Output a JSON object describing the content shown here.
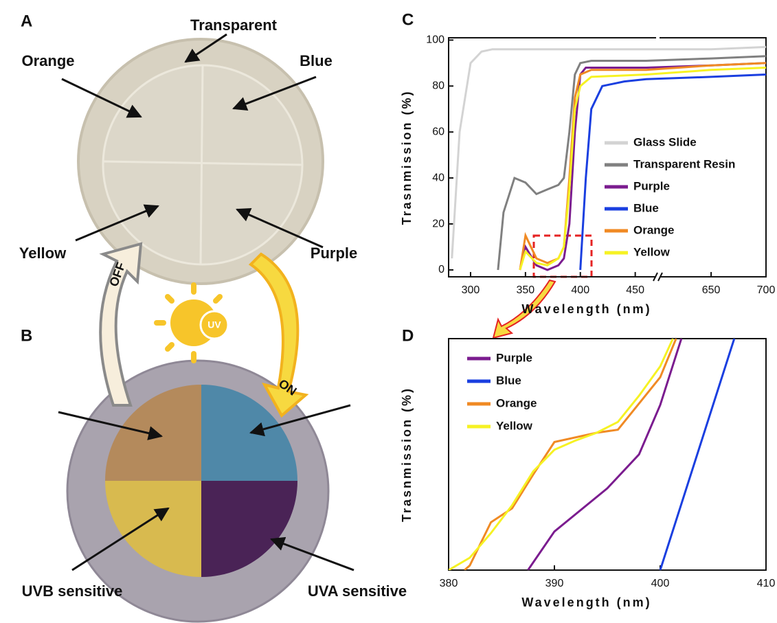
{
  "panels": {
    "a": "A",
    "b": "B"
  },
  "photo_labels": {
    "transparent": "Transparent",
    "orange": "Orange",
    "blue": "Blue",
    "yellow": "Yellow",
    "purple": "Purple",
    "uvb": "UVB sensitive",
    "uva": "UVA sensitive",
    "off": "OFF",
    "on": "ON",
    "uv": "UV"
  },
  "chart_data": [
    {
      "type": "line",
      "panel": "C",
      "xlabel": "Wavelength (nm)",
      "ylabel": "Trasnmission (%)",
      "xlim": [
        280,
        700
      ],
      "xbreak": [
        469,
        603
      ],
      "xticks": [
        300,
        350,
        400,
        450,
        650,
        700
      ],
      "ylim": [
        -3,
        101
      ],
      "yticks": [
        0,
        20,
        40,
        60,
        80,
        100
      ],
      "legend": "center-right",
      "series": [
        {
          "name": "Glass Slide",
          "color": "#d3d3d3",
          "x": [
            283,
            290,
            300,
            310,
            320,
            340,
            360,
            380,
            400,
            420,
            460,
            650,
            700
          ],
          "values": [
            5,
            60,
            90,
            95,
            96,
            96,
            96,
            96,
            96,
            96,
            96,
            96,
            97
          ]
        },
        {
          "name": "Transparent Resin",
          "color": "#808080",
          "x": [
            325,
            330,
            340,
            350,
            360,
            370,
            380,
            385,
            390,
            395,
            400,
            410,
            460,
            650,
            700
          ],
          "values": [
            0,
            25,
            40,
            38,
            33,
            35,
            37,
            40,
            60,
            85,
            90,
            91,
            91,
            92,
            93
          ]
        },
        {
          "name": "Purple",
          "color": "#7b1c8f",
          "x": [
            345,
            350,
            360,
            370,
            380,
            385,
            390,
            395,
            400,
            405,
            410,
            460,
            650,
            700
          ],
          "values": [
            0,
            10,
            2,
            0,
            2,
            5,
            20,
            60,
            85,
            88,
            88,
            88,
            89,
            90
          ]
        },
        {
          "name": "Blue",
          "color": "#1a3fe0",
          "x": [
            400,
            405,
            410,
            420,
            440,
            460,
            650,
            700
          ],
          "values": [
            0,
            40,
            70,
            80,
            82,
            83,
            84,
            85
          ]
        },
        {
          "name": "Orange",
          "color": "#f08a24",
          "x": [
            345,
            350,
            360,
            370,
            380,
            385,
            390,
            395,
            400,
            410,
            460,
            650,
            700
          ],
          "values": [
            0,
            15,
            5,
            3,
            5,
            10,
            40,
            75,
            85,
            87,
            87,
            89,
            90
          ]
        },
        {
          "name": "Yellow",
          "color": "#f6f223",
          "x": [
            345,
            350,
            360,
            370,
            380,
            385,
            390,
            395,
            400,
            410,
            460,
            650,
            700
          ],
          "values": [
            0,
            8,
            3,
            2,
            5,
            10,
            35,
            70,
            80,
            84,
            85,
            87,
            88
          ]
        }
      ]
    },
    {
      "type": "line",
      "panel": "D",
      "xlabel": "Wavelength (nm)",
      "ylabel": "Trasnmission (%)",
      "xlim": [
        380,
        410
      ],
      "xticks": [
        380,
        390,
        400,
        410
      ],
      "ylim": [
        0,
        15
      ],
      "legend": "upper-left",
      "series": [
        {
          "name": "Purple",
          "color": "#7b1c8f",
          "x": [
            387.5,
            390,
            395,
            398,
            400,
            402
          ],
          "values": [
            0,
            2.5,
            5.3,
            7.5,
            10.7,
            15
          ]
        },
        {
          "name": "Blue",
          "color": "#1a3fe0",
          "x": [
            400,
            407
          ],
          "values": [
            0,
            15
          ]
        },
        {
          "name": "Orange",
          "color": "#f08a24",
          "x": [
            381.5,
            382,
            384,
            386,
            388,
            390,
            394,
            396,
            398,
            400,
            401.5
          ],
          "values": [
            0,
            0.3,
            3.1,
            4,
            6.2,
            8.3,
            8.9,
            9.1,
            10.8,
            12.5,
            15
          ]
        },
        {
          "name": "Yellow",
          "color": "#f6f223",
          "x": [
            380,
            382,
            384,
            386,
            388,
            390,
            392,
            394,
            396,
            398,
            400,
            401.2
          ],
          "values": [
            0,
            0.8,
            2.4,
            4.2,
            6.4,
            7.8,
            8.4,
            8.9,
            9.6,
            11.3,
            13.2,
            15
          ]
        }
      ]
    }
  ]
}
